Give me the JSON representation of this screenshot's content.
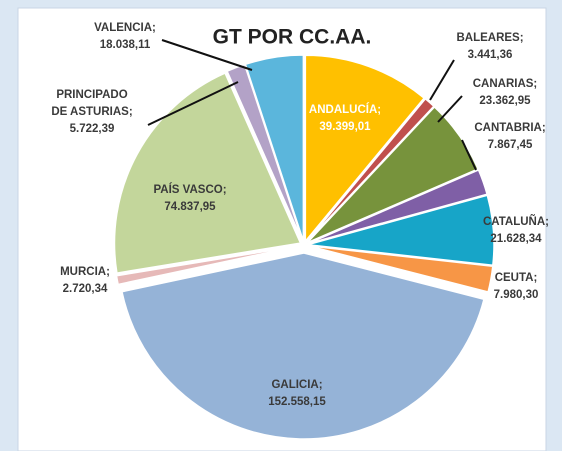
{
  "chart_data": {
    "type": "pie",
    "title": "GT POR CC.AA.",
    "categories": [
      "ANDALUCÍA;",
      "BALEARES;",
      "CANARIAS;",
      "CANTABRIA;",
      "CATALUÑA;",
      "CEUTA;",
      "GALICIA;",
      "MURCIA;",
      "PAÍS VASCO;",
      "PRINCIPADO DE ASTURIAS;",
      "VALENCIA;"
    ],
    "values": [
      39399.01,
      3441.36,
      23362.95,
      7867.45,
      21628.34,
      7980.3,
      152558.15,
      2720.34,
      74837.95,
      5722.39,
      18038.11
    ],
    "value_labels": [
      "39.399,01",
      "3.441,36",
      "23.362,95",
      "7.867,45",
      "21.628,34",
      "7.980,30",
      "152.558,15",
      "2.720,34",
      "74.837,95",
      "5.722,39",
      "18.038,11"
    ],
    "colors": [
      "#ffc000",
      "#c0504d",
      "#77933c",
      "#7f5fa6",
      "#17a5c8",
      "#f79646",
      "#95b3d7",
      "#e6b9b8",
      "#c3d69b",
      "#b3a2c7",
      "#5bb6dc"
    ]
  }
}
